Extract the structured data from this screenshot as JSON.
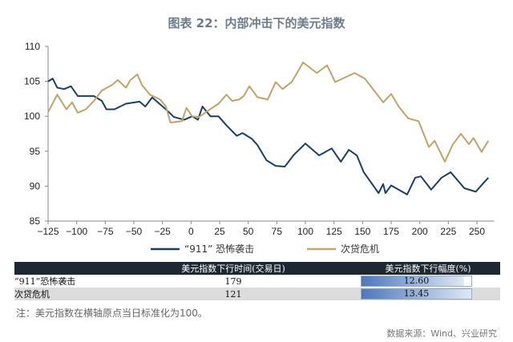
{
  "chart_data": {
    "type": "line",
    "title": "图表 22：内部冲击下的美元指数",
    "xlim": [
      -125,
      265
    ],
    "ylim": [
      85,
      110
    ],
    "xticks": [
      -125,
      -100,
      -75,
      -50,
      -25,
      0,
      25,
      50,
      75,
      100,
      125,
      150,
      175,
      200,
      225,
      250
    ],
    "yticks": [
      85,
      90,
      95,
      100,
      105,
      110
    ],
    "legend_position": "bottom",
    "series": [
      {
        "name": "“911” 恐怖袭击",
        "color": "#1b3f63",
        "x": [
          -125,
          -121,
          -117,
          -111,
          -105,
          -99,
          -92,
          -85,
          -78,
          -74,
          -67,
          -57,
          -45,
          -40,
          -34,
          -22,
          -15,
          -6,
          1,
          6,
          10,
          17,
          24,
          31,
          40,
          45,
          53,
          58,
          66,
          74,
          82,
          90,
          100,
          112,
          123,
          131,
          138,
          145,
          151,
          164,
          168,
          170,
          175,
          189,
          196,
          201,
          210,
          219,
          227,
          239,
          249,
          256,
          260
        ],
        "y": [
          105,
          105.4,
          104.1,
          103.9,
          104.3,
          102.9,
          102.9,
          102.9,
          102.2,
          101,
          101,
          101.8,
          102.1,
          101.4,
          102.7,
          101,
          99.9,
          99.5,
          100,
          99.5,
          101.4,
          100,
          100,
          98.7,
          97.2,
          97.6,
          96.8,
          95.9,
          93.7,
          92.9,
          92.8,
          94.5,
          96.1,
          94.4,
          95.4,
          93.5,
          95.2,
          94.4,
          92,
          89,
          90.3,
          89,
          90.1,
          88.8,
          91.2,
          91.4,
          89.5,
          91.2,
          92,
          89.7,
          89.2,
          90.5,
          91.2
        ]
      },
      {
        "name": "次贷危机",
        "color": "#c2a16a",
        "x": [
          -125,
          -117,
          -109,
          -104,
          -99,
          -92,
          -85,
          -78,
          -69,
          -64,
          -57,
          -53,
          -47,
          -43,
          -36,
          -27,
          -22,
          -18,
          -8,
          -4,
          1,
          7,
          13,
          24,
          31,
          36,
          42,
          46,
          51,
          58,
          67,
          74,
          80,
          88,
          98,
          110,
          119,
          126,
          143,
          152,
          168,
          175,
          182,
          190,
          199,
          208,
          213,
          222,
          229,
          236,
          243,
          247,
          254,
          260
        ],
        "y": [
          100.6,
          103.1,
          101,
          102,
          100.5,
          101,
          102.2,
          103.7,
          104.5,
          105.2,
          104.1,
          105.2,
          106,
          104.5,
          103.1,
          102.4,
          101.4,
          99.1,
          99.3,
          101.2,
          100,
          99.9,
          100.6,
          101.8,
          103.1,
          102.2,
          102.4,
          102.9,
          104.3,
          102.75,
          102.4,
          104.9,
          103.9,
          104.9,
          107.7,
          106.2,
          107.3,
          104.9,
          106.2,
          105.4,
          102,
          103.2,
          101.3,
          99.7,
          99.3,
          95.6,
          96.5,
          93.5,
          96,
          97.5,
          96,
          96.9,
          94.9,
          96.5
        ]
      }
    ]
  },
  "table": {
    "headers": [
      "",
      "美元指数下行时间(交易日)",
      "美元指数下行幅度(%)"
    ],
    "rows": [
      {
        "label": "“911”恐怖袭击",
        "days": "179",
        "drop": "12.60",
        "drop_value": 12.6
      },
      {
        "label": "次贷危机",
        "days": "121",
        "drop": "13.45",
        "drop_value": 13.45
      }
    ]
  },
  "note": "注：美元指数在横轴原点当日标准化为100。",
  "source": "数据来源：Wind、兴业研究"
}
